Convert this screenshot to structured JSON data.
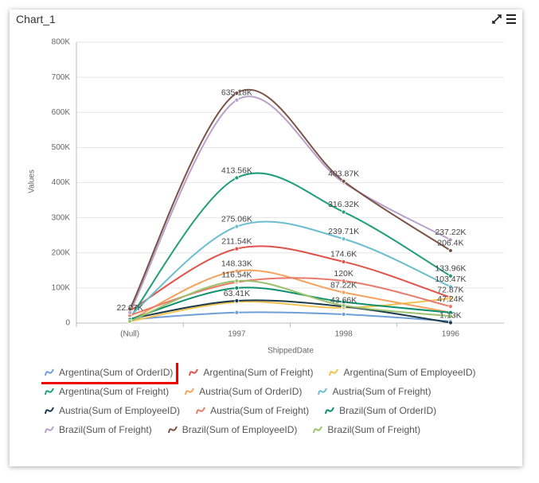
{
  "chart_data": {
    "type": "line",
    "title": "Chart_1",
    "x_label": "ShippedDate",
    "y_label": "Values",
    "categories": [
      "(Null)",
      "1997",
      "1998",
      "1996"
    ],
    "ylim": [
      0,
      800000
    ],
    "yticks": [
      0,
      {
        "value": 100000,
        "label": "100K"
      },
      {
        "value": 200000,
        "label": "200K"
      },
      {
        "value": 300000,
        "label": "300K"
      },
      {
        "value": 400000,
        "label": "400K"
      },
      {
        "value": 500000,
        "label": "500K"
      },
      {
        "value": 600000,
        "label": "600K"
      },
      {
        "value": 700000,
        "label": "700K"
      },
      {
        "value": 800000,
        "label": "800K"
      }
    ],
    "grid": true,
    "series": [
      {
        "name": "Argentina(Sum of OrderID)",
        "color": "#6f9fd8",
        "values": [
          10000,
          30000,
          25000,
          5000
        ]
      },
      {
        "name": "Argentina(Sum of Freight)",
        "color": "#e0534a",
        "values": [
          35000,
          211540,
          174600,
          72870
        ],
        "value_labels": [
          null,
          "211.54K",
          "174.6K",
          "72.87K"
        ]
      },
      {
        "name": "Argentina(Sum of EmployeeID)",
        "color": "#f2c14e",
        "values": [
          5000,
          60000,
          43660,
          70000
        ],
        "value_labels": [
          null,
          null,
          "43.66K",
          null
        ]
      },
      {
        "name": "Argentina(Sum of Freight)",
        "color": "#1f9e78",
        "values": [
          15000,
          413560,
          316320,
          133960
        ],
        "value_labels": [
          null,
          "413.56K",
          "316.32K",
          "133.96K"
        ]
      },
      {
        "name": "Austria(Sum of OrderID)",
        "color": "#f2a35e",
        "values": [
          8000,
          148330,
          87220,
          30000
        ],
        "value_labels": [
          null,
          "148.33K",
          "87.22K",
          null
        ]
      },
      {
        "name": "Austria(Sum of Freight)",
        "color": "#6bbdd0",
        "values": [
          20000,
          275060,
          239710,
          103470
        ],
        "value_labels": [
          null,
          "275.06K",
          "239.71K",
          "103.47K"
        ]
      },
      {
        "name": "Austria(Sum of EmployeeID)",
        "color": "#1b3a4b",
        "values": [
          12000,
          63410,
          47000,
          1130
        ],
        "value_labels": [
          null,
          "63.41K",
          null,
          "1.13K"
        ]
      },
      {
        "name": "Austria(Sum of Freight)",
        "color": "#e87a6b",
        "values": [
          22070,
          116540,
          120000,
          47240
        ],
        "value_labels": [
          "22.07K",
          "116.54K",
          "120K",
          "47.24K"
        ]
      },
      {
        "name": "Brazil(Sum of OrderID)",
        "color": "#0e8f6e",
        "values": [
          10000,
          100000,
          60000,
          30000
        ]
      },
      {
        "name": "Brazil(Sum of Freight)",
        "color": "#b8a0c8",
        "values": [
          30000,
          635180,
          400000,
          237220
        ],
        "value_labels": [
          null,
          "635.18K",
          null,
          "237.22K"
        ]
      },
      {
        "name": "Brazil(Sum of EmployeeID)",
        "color": "#7b5247",
        "values": [
          40000,
          655000,
          403870,
          206400
        ],
        "value_labels": [
          null,
          null,
          "403.87K",
          "206.4K"
        ]
      },
      {
        "name": "Brazil(Sum of Freight)",
        "color": "#9bc26b",
        "values": [
          5000,
          120000,
          50000,
          20000
        ]
      }
    ]
  }
}
